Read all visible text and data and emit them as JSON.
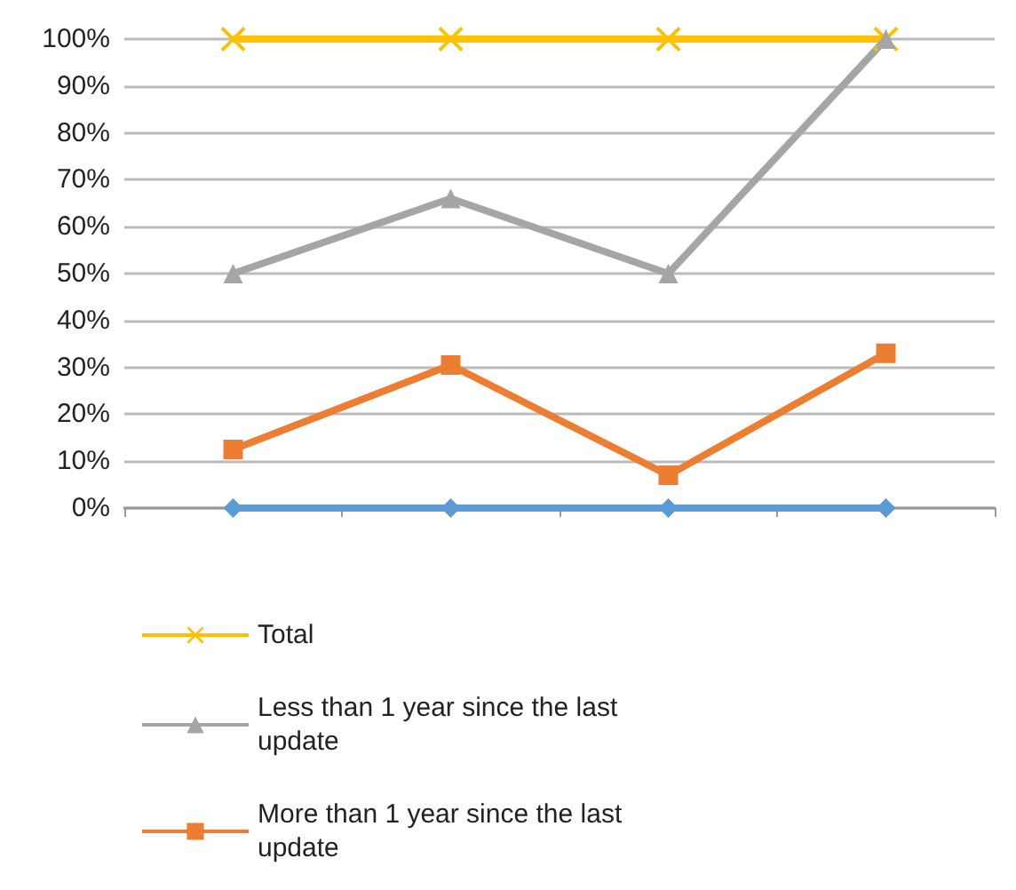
{
  "chart_data": {
    "type": "line",
    "categories": [
      null,
      null,
      null,
      null
    ],
    "series": [
      {
        "name": "Total",
        "color": "#ffc000",
        "marker": "cross",
        "values": [
          100,
          100,
          100,
          100
        ]
      },
      {
        "name": "Less than 1 year since the last update",
        "color": "#a5a5a5",
        "marker": "triangle",
        "values": [
          50,
          66,
          50,
          100
        ]
      },
      {
        "name": "More than 1 year since the last update",
        "color": "#ed7d31",
        "marker": "square",
        "values": [
          12.5,
          30.5,
          7,
          33
        ]
      },
      {
        "color": "#5b9bd5",
        "marker": "diamond",
        "values": [
          0,
          0,
          0,
          0
        ]
      }
    ],
    "ylim": [
      0,
      100
    ],
    "yticks": [
      {
        "value": 0,
        "label": "0%"
      },
      {
        "value": 10,
        "label": "10%"
      },
      {
        "value": 20,
        "label": "20%"
      },
      {
        "value": 30,
        "label": "30%"
      },
      {
        "value": 40,
        "label": "40%"
      },
      {
        "value": 50,
        "label": "50%"
      },
      {
        "value": 60,
        "label": "60%"
      },
      {
        "value": 70,
        "label": "70%"
      },
      {
        "value": 80,
        "label": "80%"
      },
      {
        "value": 90,
        "label": "90%"
      },
      {
        "value": 100,
        "label": "100%"
      }
    ],
    "grid": "y",
    "legend": "bottom"
  }
}
